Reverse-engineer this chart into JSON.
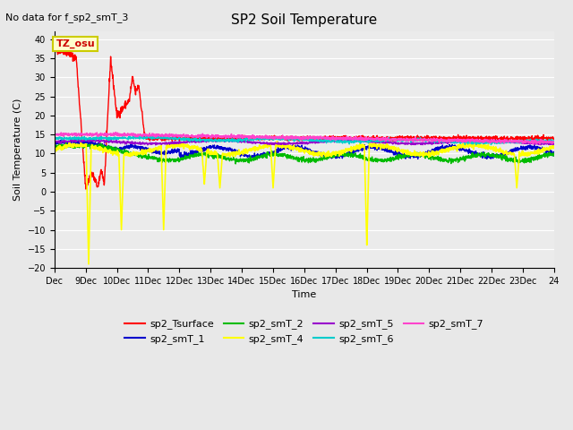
{
  "title": "SP2 Soil Temperature",
  "subtitle": "No data for f_sp2_smT_3",
  "xlabel": "Time",
  "ylabel": "Soil Temperature (C)",
  "ylim": [
    -20,
    42
  ],
  "yticks": [
    -20,
    -15,
    -10,
    -5,
    0,
    5,
    10,
    15,
    20,
    25,
    30,
    35,
    40
  ],
  "x_start": 8,
  "x_end": 24,
  "xtick_positions": [
    8,
    9,
    10,
    11,
    12,
    13,
    14,
    15,
    16,
    17,
    18,
    19,
    20,
    21,
    22,
    23,
    24
  ],
  "xtick_labels": [
    "Dec",
    "9Dec",
    "10Dec",
    "11Dec",
    "12Dec",
    "13Dec",
    "14Dec",
    "15Dec",
    "16Dec",
    "17Dec",
    "18Dec",
    "19Dec",
    "20Dec",
    "21Dec",
    "22Dec",
    "23Dec",
    "24"
  ],
  "tz_label": "TZ_osu",
  "bg_color": "#e8e8e8",
  "plot_bg_color": "#ebebeb",
  "legend_entries": [
    {
      "label": "sp2_Tsurface",
      "color": "#ff0000"
    },
    {
      "label": "sp2_smT_1",
      "color": "#0000cc"
    },
    {
      "label": "sp2_smT_2",
      "color": "#00bb00"
    },
    {
      "label": "sp2_smT_4",
      "color": "#ffff00"
    },
    {
      "label": "sp2_smT_5",
      "color": "#9900cc"
    },
    {
      "label": "sp2_smT_6",
      "color": "#00cccc"
    },
    {
      "label": "sp2_smT_7",
      "color": "#ff44cc"
    }
  ]
}
